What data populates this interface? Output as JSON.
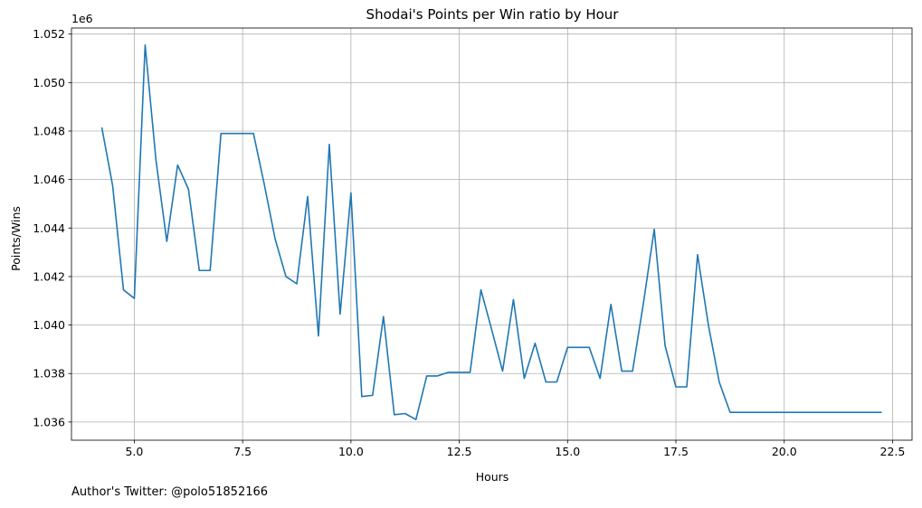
{
  "chart_data": {
    "type": "line",
    "title": "Shodai's Points per Win ratio by Hour",
    "xlabel": "Hours",
    "ylabel": "Points/Wins",
    "y_offset_label": "1e6",
    "y_scale_factor": 1000000,
    "xlim": [
      3.55,
      22.95
    ],
    "ylim": [
      1.03525,
      1.05225
    ],
    "x_ticks": [
      5.0,
      7.5,
      10.0,
      12.5,
      15.0,
      17.5,
      20.0,
      22.5
    ],
    "x_tick_labels": [
      "5.0",
      "7.5",
      "10.0",
      "12.5",
      "15.0",
      "17.5",
      "20.0",
      "22.5"
    ],
    "y_ticks": [
      1.036,
      1.038,
      1.04,
      1.042,
      1.044,
      1.046,
      1.048,
      1.05,
      1.052
    ],
    "y_tick_labels": [
      "1.036",
      "1.038",
      "1.040",
      "1.042",
      "1.044",
      "1.046",
      "1.048",
      "1.050",
      "1.052"
    ],
    "grid": true,
    "series": [
      {
        "color": "#1f77b4",
        "x": [
          4.25,
          4.5,
          4.75,
          5.0,
          5.25,
          5.5,
          5.75,
          6.0,
          6.25,
          6.5,
          6.75,
          7.0,
          7.25,
          7.5,
          7.75,
          8.0,
          8.25,
          8.5,
          8.75,
          9.0,
          9.25,
          9.5,
          9.75,
          10.0,
          10.25,
          10.5,
          10.75,
          11.0,
          11.25,
          11.5,
          11.75,
          12.0,
          12.25,
          12.5,
          12.75,
          13.0,
          13.25,
          13.5,
          13.75,
          14.0,
          14.25,
          14.5,
          14.75,
          15.0,
          15.25,
          15.5,
          15.75,
          16.0,
          16.25,
          16.5,
          16.75,
          17.0,
          17.25,
          17.5,
          17.75,
          18.0,
          18.25,
          18.5,
          18.75,
          19.0,
          19.25,
          19.5,
          19.75,
          20.0,
          20.25,
          20.5,
          20.75,
          21.0,
          21.25,
          21.5,
          21.75,
          22.0,
          22.25
        ],
        "y": [
          1.04815,
          1.04575,
          1.04145,
          1.0411,
          1.05155,
          1.0468,
          1.04345,
          1.0466,
          1.0456,
          1.04225,
          1.04225,
          1.0479,
          1.0479,
          1.0479,
          1.0479,
          1.0458,
          1.04355,
          1.042,
          1.0417,
          1.0453,
          1.03955,
          1.04745,
          1.04045,
          1.04545,
          1.03705,
          1.0371,
          1.04035,
          1.0363,
          1.03635,
          1.0361,
          1.0379,
          1.0379,
          1.03805,
          1.03805,
          1.03805,
          1.04145,
          1.0398,
          1.0381,
          1.04105,
          1.0378,
          1.03925,
          1.03765,
          1.03765,
          1.03908,
          1.03908,
          1.03908,
          1.0378,
          1.04085,
          1.0381,
          1.0381,
          1.0409,
          1.04395,
          1.03915,
          1.03745,
          1.03745,
          1.0429,
          1.04,
          1.03765,
          1.0364,
          1.0364,
          1.0364,
          1.0364,
          1.0364,
          1.0364,
          1.0364,
          1.0364,
          1.0364,
          1.0364,
          1.0364,
          1.0364,
          1.0364,
          1.0364,
          1.0364
        ]
      }
    ]
  },
  "footer": {
    "credit": "Author's Twitter: @polo51852166"
  }
}
